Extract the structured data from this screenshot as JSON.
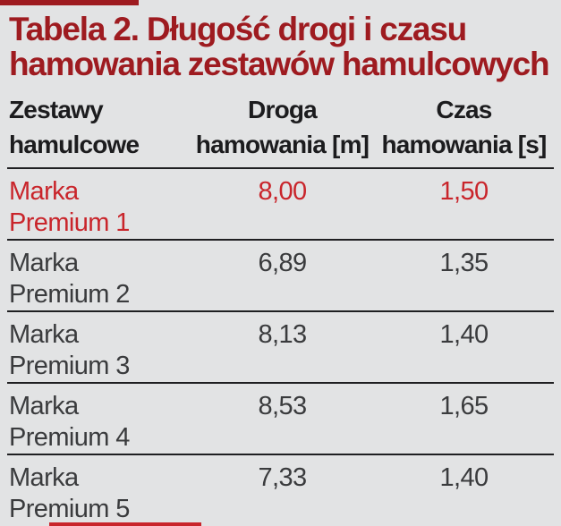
{
  "page": {
    "background": "#e2e3e4"
  },
  "decorations": {
    "top_rule_color": "#9e1b20",
    "bottom_rule_color": "#c9252b"
  },
  "title": {
    "line1": "Tabela 2. Długość drogi i czasu",
    "line2": "hamowania zestawów hamulcowych",
    "color": "#9e1b20"
  },
  "table": {
    "header": [
      {
        "line1": "Zestawy",
        "line2": "hamulcowe"
      },
      {
        "line1": "Droga",
        "line2": "hamowania [m]"
      },
      {
        "line1": "Czas",
        "line2": "hamowania [s]"
      }
    ],
    "rows": [
      {
        "brand_line1": "Marka",
        "brand_line2": "Premium 1",
        "braking_distance_m": "8,00",
        "braking_time_s": "1,50",
        "highlighted": true
      },
      {
        "brand_line1": "Marka",
        "brand_line2": "Premium 2",
        "braking_distance_m": "6,89",
        "braking_time_s": "1,35",
        "highlighted": false
      },
      {
        "brand_line1": "Marka",
        "brand_line2": "Premium 3",
        "braking_distance_m": "8,13",
        "braking_time_s": "1,40",
        "highlighted": false
      },
      {
        "brand_line1": "Marka",
        "brand_line2": "Premium 4",
        "braking_distance_m": "8,53",
        "braking_time_s": "1,65",
        "highlighted": false
      },
      {
        "brand_line1": "Marka",
        "brand_line2": "Premium 5",
        "braking_distance_m": "7,33",
        "braking_time_s": "1,40",
        "highlighted": false
      }
    ],
    "colors": {
      "header_text": "#1c1c1e",
      "body_text": "#3a3b3d",
      "highlight_text": "#c9252b",
      "separator_rule": "#1f1f21"
    }
  }
}
